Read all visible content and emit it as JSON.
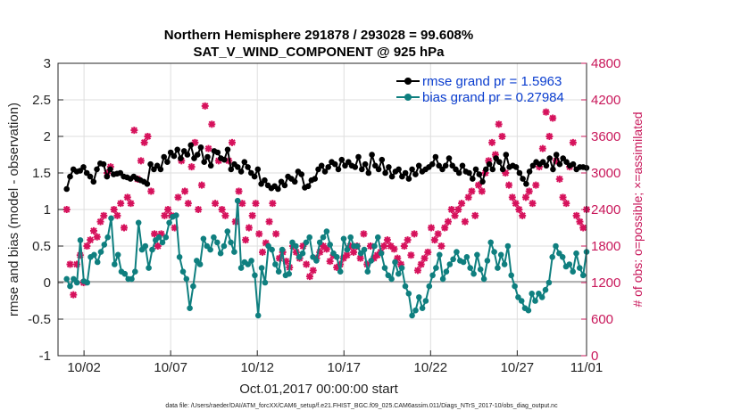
{
  "chart_data": {
    "type": "line",
    "title_line1": "Northern Hemisphere 291878 / 293028 = 99.608%",
    "title_line2": "SAT_V_WIND_COMPONENT @ 925 hPa",
    "xlabel": "Oct.01,2017 00:00:00 start",
    "ylabel_left": "rmse and bias (model - observation)",
    "ylabel_right": "# of obs: o=possible; ×=assimilated",
    "footnote": "data file: /Users/raeder/DAI/ATM_forcXX/CAM6_setup/f.e21.FHIST_BGC.f09_025.CAM6assim.011/Diags_NTrS_2017-10/obs_diag_output.nc",
    "x_range_days": [
      0.5,
      31.0
    ],
    "x_ticks": [
      {
        "day": 2,
        "label": "10/02"
      },
      {
        "day": 7,
        "label": "10/07"
      },
      {
        "day": 12,
        "label": "10/12"
      },
      {
        "day": 17,
        "label": "10/17"
      },
      {
        "day": 22,
        "label": "10/22"
      },
      {
        "day": 27,
        "label": "10/27"
      },
      {
        "day": 31,
        "label": "11/01"
      }
    ],
    "ylim_left": [
      -1,
      3
    ],
    "y_ticks_left": [
      "-1",
      "-0.5",
      "0",
      "0.5",
      "1",
      "1.5",
      "2",
      "2.5",
      "3"
    ],
    "ylim_right": [
      0,
      4800
    ],
    "y_ticks_right": [
      "0",
      "600",
      "1200",
      "1800",
      "2400",
      "3000",
      "3600",
      "4200",
      "4800"
    ],
    "legend": [
      {
        "name": "rmse grand pr = 1.5963",
        "color": "#000000"
      },
      {
        "name": "bias grand pr = 0.27984",
        "color": "#0f7f7f"
      }
    ],
    "colors": {
      "rmse": "#000000",
      "bias": "#0f7f7f",
      "obs": "#d6125c",
      "zero_line": "#b3b3b3",
      "grid": "#dedede"
    },
    "rmse": [
      1.28,
      1.45,
      1.55,
      1.52,
      1.53,
      1.58,
      1.5,
      1.45,
      1.38,
      1.55,
      1.63,
      1.62,
      1.45,
      1.55,
      1.48,
      1.49,
      1.5,
      1.45,
      1.44,
      1.42,
      1.45,
      1.42,
      1.4,
      1.38,
      1.35,
      1.62,
      1.55,
      1.6,
      1.55,
      1.72,
      1.65,
      1.78,
      1.73,
      1.82,
      1.7,
      1.8,
      1.75,
      1.88,
      1.7,
      1.75,
      1.85,
      1.65,
      1.72,
      1.6,
      1.8,
      1.78,
      1.7,
      1.68,
      1.82,
      1.55,
      1.62,
      1.58,
      1.52,
      1.65,
      1.58,
      1.5,
      1.45,
      1.55,
      1.35,
      1.4,
      1.33,
      1.29,
      1.32,
      1.28,
      1.38,
      1.33,
      1.45,
      1.42,
      1.38,
      1.52,
      1.48,
      1.3,
      1.32,
      1.4,
      1.42,
      1.55,
      1.6,
      1.52,
      1.58,
      1.65,
      1.62,
      1.55,
      1.68,
      1.6,
      1.65,
      1.6,
      1.58,
      1.72,
      1.55,
      1.62,
      1.5,
      1.75,
      1.6,
      1.55,
      1.68,
      1.5,
      1.58,
      1.45,
      1.52,
      1.55,
      1.45,
      1.5,
      1.42,
      1.55,
      1.48,
      1.6,
      1.52,
      1.55,
      1.58,
      1.62,
      1.72,
      1.6,
      1.55,
      1.6,
      1.7,
      1.6,
      1.55,
      1.5,
      1.6,
      1.52,
      1.5,
      1.42,
      1.55,
      1.48,
      1.38,
      1.55,
      1.62,
      1.55,
      1.7,
      1.65,
      1.55,
      1.75,
      1.58,
      1.6,
      1.58,
      1.5,
      1.42,
      1.35,
      1.52,
      1.6,
      1.65,
      1.62,
      1.65,
      1.6,
      1.7,
      1.55,
      1.75,
      1.62,
      1.7,
      1.65,
      1.6,
      1.62,
      1.55,
      1.58,
      1.58,
      1.57
    ],
    "bias": [
      0.05,
      -0.05,
      0.05,
      0.0,
      0.58,
      0.02,
      0.0,
      0.35,
      0.38,
      0.28,
      0.42,
      0.52,
      0.62,
      0.88,
      0.25,
      0.38,
      0.15,
      0.12,
      0.05,
      0.05,
      0.15,
      0.82,
      0.45,
      0.5,
      0.2,
      0.45,
      0.58,
      0.62,
      0.55,
      0.62,
      0.82,
      0.9,
      0.92,
      0.35,
      0.15,
      0.05,
      -0.35,
      -0.05,
      0.3,
      0.25,
      0.6,
      0.5,
      0.45,
      0.62,
      0.55,
      0.4,
      0.5,
      0.7,
      0.55,
      0.42,
      1.12,
      0.2,
      0.28,
      0.25,
      0.3,
      0.1,
      -0.45,
      0.2,
      0.0,
      0.5,
      0.45,
      0.25,
      0.15,
      0.45,
      0.1,
      0.12,
      0.55,
      0.5,
      0.35,
      0.4,
      0.55,
      0.62,
      0.35,
      0.3,
      0.55,
      0.62,
      0.7,
      0.52,
      0.4,
      0.35,
      0.15,
      0.6,
      0.45,
      0.62,
      0.5,
      0.5,
      0.4,
      0.45,
      0.15,
      0.3,
      0.5,
      0.62,
      0.4,
      0.2,
      0.1,
      0.05,
      0.28,
      0.12,
      0.2,
      -0.05,
      -0.15,
      -0.45,
      -0.38,
      -0.2,
      -0.35,
      -0.25,
      -0.05,
      0.1,
      0.2,
      0.38,
      0.05,
      0.15,
      0.25,
      0.32,
      0.42,
      0.3,
      0.28,
      0.35,
      0.2,
      0.12,
      0.38,
      0.18,
      0.05,
      0.3,
      0.55,
      0.42,
      0.2,
      0.38,
      0.25,
      0.5,
      0.1,
      -0.05,
      -0.2,
      -0.25,
      -0.35,
      -0.38,
      -0.15,
      -0.25,
      -0.15,
      -0.2,
      -0.1,
      0.0,
      0.35,
      0.5,
      0.4,
      0.35,
      0.22,
      0.25,
      0.15,
      0.4,
      0.2,
      0.1,
      0.42
    ],
    "obs_assimilated": [
      2400,
      1500,
      1000,
      1500,
      1650,
      1200,
      1800,
      1900,
      2050,
      1950,
      2200,
      2300,
      3000,
      3100,
      2400,
      2300,
      2500,
      2100,
      2600,
      2500,
      3700,
      2900,
      3200,
      3500,
      3600,
      2700,
      2000,
      1800,
      2000,
      2300,
      2400,
      2300,
      2100,
      2600,
      3200,
      2700,
      2500,
      3100,
      3500,
      2400,
      2800,
      4100,
      3400,
      3800,
      2500,
      3200,
      2400,
      2300,
      3200,
      3500,
      2200,
      2700,
      2500,
      1900,
      2100,
      2300,
      2500,
      2000,
      1700,
      1850,
      2200,
      2500,
      2000,
      1600,
      1700,
      1550,
      1450,
      1800,
      1700,
      1600,
      1800,
      1500,
      1300,
      1400,
      1600,
      1700,
      1800,
      1750,
      1550,
      1650,
      1450,
      1500,
      1600,
      1650,
      1800,
      1700,
      1800,
      1600,
      2000,
      1500,
      1800,
      1600,
      1650,
      1700,
      1800,
      1900,
      1800,
      1750,
      1600,
      1500,
      1800,
      1900,
      1650,
      2000,
      1400,
      1500,
      1600,
      1700,
      2100,
      1900,
      2000,
      1800,
      2100,
      2200,
      2400,
      2300,
      2400,
      2500,
      2200,
      2600,
      2700,
      2300,
      2800,
      2700,
      3000,
      3200,
      3500,
      3300,
      3800,
      3600,
      3000,
      2800,
      2600,
      2500,
      2400,
      2300,
      2600,
      2700,
      2500,
      2800,
      3100,
      3400,
      4000,
      3600,
      3900,
      3200,
      2900,
      2600,
      2500,
      3100,
      3500,
      2300,
      2200,
      2100,
      2400
    ]
  }
}
